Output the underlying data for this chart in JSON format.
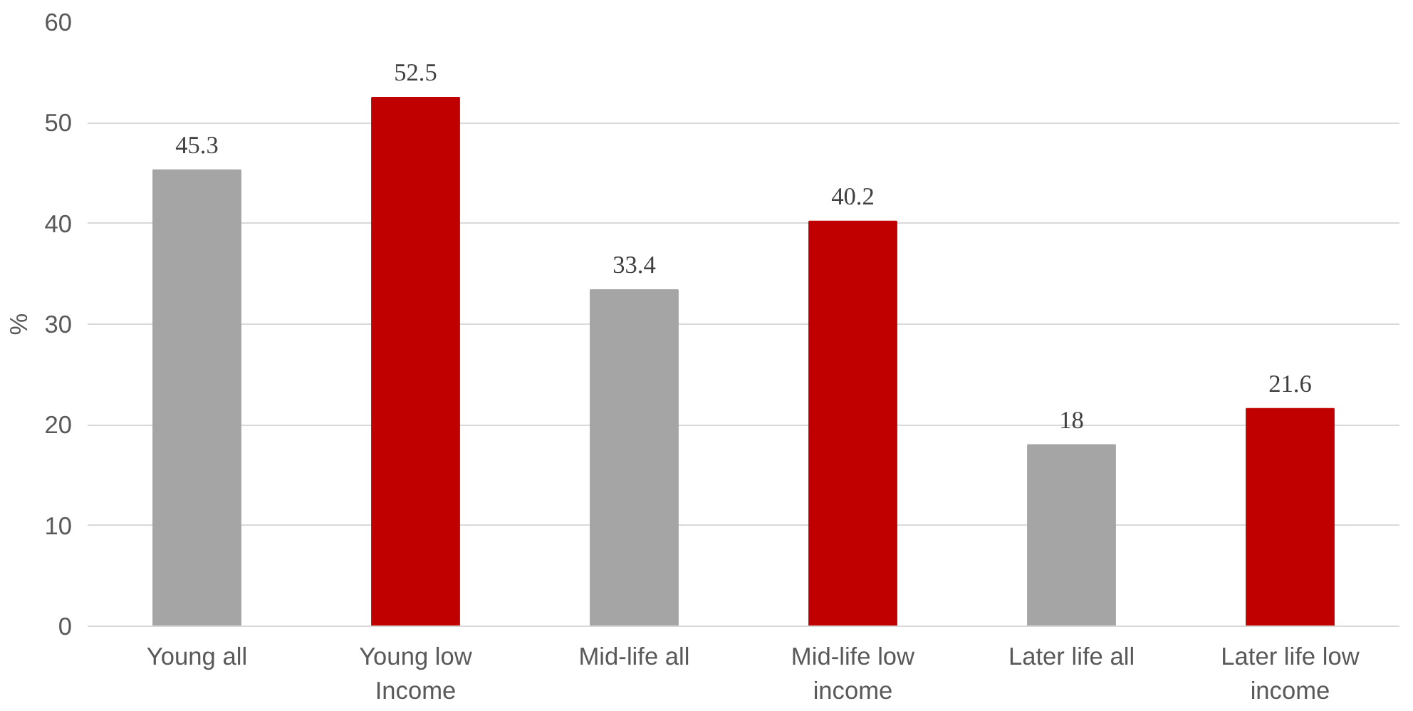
{
  "chart_data": {
    "type": "bar",
    "ylabel": "%",
    "categories": [
      "Young all",
      "Young low Income",
      "Mid-life all",
      "Mid-life low income",
      "Later life all",
      "Later life low income"
    ],
    "values": [
      45.3,
      52.5,
      33.4,
      40.2,
      18,
      21.6
    ],
    "colors": [
      "#a5a5a5",
      "#c00000",
      "#a5a5a5",
      "#c00000",
      "#a5a5a5",
      "#c00000"
    ],
    "ylim": [
      0,
      60
    ],
    "yticks": [
      0,
      10,
      20,
      30,
      40,
      50,
      60
    ],
    "grid": "y",
    "data_labels": true
  }
}
